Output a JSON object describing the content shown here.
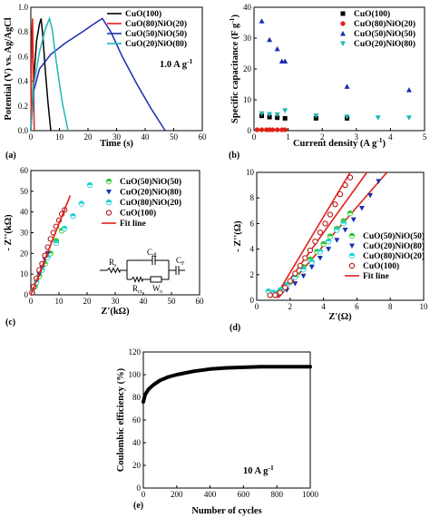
{
  "chart_data": [
    {
      "panel": "(a)",
      "type": "line",
      "xlabel": "Time (s)",
      "ylabel": "Potential (V) vs. Ag/AgCl",
      "xlim": [
        0,
        60
      ],
      "ylim": [
        0,
        1.1
      ],
      "xticks": [
        "0",
        "10",
        "20",
        "30",
        "40",
        "50",
        "60"
      ],
      "yticks": [
        "0.0",
        "0.2",
        "0.4",
        "0.6",
        "0.8",
        "1.0"
      ],
      "annotation": "1.0 A g",
      "annotation_sup": "-1",
      "annotation_color": "#1f9a1f",
      "legend_position": "top-right",
      "series": [
        {
          "name": "CuO(100)",
          "color": "#000000",
          "x": [
            0,
            1,
            2,
            3,
            3.6,
            4.2,
            5,
            6,
            7
          ],
          "y": [
            0,
            0.45,
            0.8,
            0.95,
            1.0,
            0.85,
            0.55,
            0.25,
            0
          ]
        },
        {
          "name": "CuO(80)NiO(20)",
          "color": "#e32017",
          "x": [
            0,
            0.2,
            0.4,
            0.6,
            0.9,
            1.2
          ],
          "y": [
            0,
            0.5,
            0.9,
            1.0,
            0.5,
            0
          ]
        },
        {
          "name": "CuO(50)NiO(50)",
          "color": "#1a2fb0",
          "x": [
            0,
            1,
            3,
            7,
            12,
            18,
            22,
            25,
            28,
            32,
            37,
            42,
            47
          ],
          "y": [
            0,
            0.35,
            0.55,
            0.68,
            0.78,
            0.88,
            0.95,
            1.0,
            0.88,
            0.66,
            0.42,
            0.2,
            0
          ]
        },
        {
          "name": "CuO(20)NiO(80)",
          "color": "#1fb5b5",
          "x": [
            0,
            1,
            3,
            5,
            6.5,
            7.5,
            9,
            11,
            13
          ],
          "y": [
            0,
            0.4,
            0.7,
            0.9,
            1.0,
            0.9,
            0.6,
            0.25,
            0
          ]
        }
      ]
    },
    {
      "panel": "(b)",
      "type": "scatter",
      "xlabel": "Current density (A g",
      "xlabel_sup": "-1",
      "xlabel_tail": ")",
      "ylabel": "Specific capacitance (F g",
      "ylabel_sup": "-1",
      "ylabel_tail": ")",
      "xlim": [
        0,
        5.5
      ],
      "ylim": [
        0,
        40
      ],
      "xticks": [
        "0",
        "1",
        "2",
        "3",
        "4",
        "5"
      ],
      "yticks": [
        "0",
        "10",
        "20",
        "30",
        "40"
      ],
      "legend_position": "top-right",
      "series": [
        {
          "name": "CuO(100)",
          "color": "#000000",
          "marker": "square",
          "x": [
            0.25,
            0.5,
            0.75,
            1.0,
            2.0,
            3.0
          ],
          "y": [
            4.8,
            4.4,
            4.2,
            4.0,
            4.0,
            4.0
          ]
        },
        {
          "name": "CuO(80)NiO(20)",
          "color": "#e32017",
          "marker": "circle",
          "x": [
            0.1,
            0.25,
            0.4,
            0.5,
            0.6,
            0.75,
            0.9,
            1.0
          ],
          "y": [
            0.3,
            0.3,
            0.3,
            0.3,
            0.3,
            0.3,
            0.3,
            0.3
          ]
        },
        {
          "name": "CuO(50)NiO(50)",
          "color": "#1a2fb0",
          "marker": "triangle-up",
          "x": [
            0.25,
            0.5,
            0.75,
            0.9,
            1.0,
            3.0,
            5.0
          ],
          "y": [
            35.5,
            29.5,
            26.5,
            22.5,
            22.5,
            14.3,
            13.2
          ]
        },
        {
          "name": "CuO(20)NiO(80)",
          "color": "#1fb5b5",
          "marker": "triangle-down",
          "x": [
            0.25,
            0.5,
            0.75,
            1.0,
            2.0,
            3.0,
            4.0,
            5.0
          ],
          "y": [
            5.5,
            5.3,
            5.2,
            6.5,
            4.8,
            4.5,
            4.2,
            4.2
          ]
        }
      ]
    },
    {
      "panel": "(c)",
      "type": "scatter",
      "xlabel": "Z'(kΩ)",
      "ylabel": "- Z''(kΩ)",
      "xlim": [
        0,
        60
      ],
      "ylim": [
        0,
        60
      ],
      "xticks": [
        "0",
        "10",
        "20",
        "30",
        "40",
        "50",
        "60"
      ],
      "yticks": [
        "0",
        "10",
        "20",
        "30",
        "40",
        "50",
        "60"
      ],
      "legend_position": "top-right",
      "circuit_labels": {
        "rs": "R",
        "rs_sub": "s",
        "cdl": "C",
        "cdl_sub": "dl",
        "rct": "R",
        "rct_sub": "ct",
        "w": "W",
        "w_sub": "o",
        "cf": "C",
        "cf_sub": "F"
      },
      "series": [
        {
          "name": "CuO(50)NiO(50)",
          "color": "#2fc92f",
          "marker": "circle-half",
          "x": [
            0.5,
            1.5,
            3,
            5,
            7,
            9,
            11
          ],
          "y": [
            1,
            4,
            9,
            15,
            20,
            26,
            31
          ]
        },
        {
          "name": "CuO(20)NiO(80)",
          "color": "#1a2fb0",
          "marker": "triangle-down",
          "x": [
            0.5,
            1,
            2,
            3,
            4,
            5,
            6
          ],
          "y": [
            1,
            3,
            6,
            10,
            13,
            17,
            20
          ]
        },
        {
          "name": "CuO(80)NiO(20)",
          "color": "#1fd0d0",
          "marker": "circle-half",
          "x": [
            0.5,
            2,
            4,
            6,
            9,
            12,
            15,
            18,
            21
          ],
          "y": [
            1,
            6,
            12,
            18,
            25,
            32,
            38,
            44,
            53
          ]
        },
        {
          "name": "CuO(100)",
          "color": "#b01818",
          "marker": "circle-open",
          "x": [
            0.4,
            1,
            2,
            3,
            4,
            5,
            6,
            7,
            8,
            9,
            10,
            11,
            12
          ],
          "y": [
            1,
            4,
            8,
            12,
            15,
            19,
            23,
            27,
            30,
            33,
            36,
            39,
            41
          ]
        },
        {
          "name": "Fit line",
          "color": "#e32017",
          "marker": "line",
          "x": [
            0,
            14
          ],
          "y": [
            0,
            48
          ]
        }
      ]
    },
    {
      "panel": "(d)",
      "type": "scatter",
      "xlabel": "Z'(Ω)",
      "ylabel": "- Z''(Ω)",
      "xlim": [
        0,
        10
      ],
      "ylim": [
        0,
        10
      ],
      "xticks": [
        "0",
        "2",
        "4",
        "6",
        "8",
        "10"
      ],
      "yticks": [
        "0",
        "2",
        "4",
        "6",
        "8",
        "10"
      ],
      "legend_position": "bottom-right",
      "series": [
        {
          "name": "CuO(50)NiO(50)",
          "color": "#2fc92f",
          "marker": "circle-half",
          "x": [
            0.8,
            1.0,
            1.3,
            1.6,
            2.0,
            2.4,
            2.8,
            3.2,
            3.6,
            4.0,
            4.4,
            4.8,
            5.2,
            5.6
          ],
          "y": [
            0.6,
            0.5,
            0.6,
            0.9,
            1.4,
            2.0,
            2.6,
            3.2,
            3.8,
            4.4,
            5.0,
            5.6,
            6.2,
            6.8
          ]
        },
        {
          "name": "CuO(20)NiO(80)",
          "color": "#1a2fb0",
          "marker": "triangle-down",
          "x": [
            1.0,
            1.4,
            1.8,
            2.3,
            2.8,
            3.3,
            3.8,
            4.3,
            4.8,
            5.3,
            5.8,
            6.3,
            6.8,
            7.3
          ],
          "y": [
            0.5,
            0.5,
            0.8,
            1.3,
            1.9,
            2.6,
            3.3,
            4.0,
            4.7,
            5.5,
            6.3,
            7.2,
            8.2,
            9.3
          ]
        },
        {
          "name": "CuO(80)NiO(20)",
          "color": "#1fd0d0",
          "marker": "circle-half",
          "x": [
            0.7,
            1.0,
            1.4,
            1.8,
            2.3,
            2.8,
            3.3,
            3.8,
            4.3,
            4.8,
            5.2
          ],
          "y": [
            0.7,
            0.6,
            0.8,
            1.2,
            1.8,
            2.4,
            3.0,
            3.8,
            4.6,
            5.5,
            6.0
          ]
        },
        {
          "name": "CuO(100)",
          "color": "#b01818",
          "marker": "circle-open",
          "x": [
            0.8,
            1.1,
            1.4,
            1.7,
            2.0,
            2.3,
            2.6,
            2.9,
            3.2,
            3.5,
            3.8,
            4.1,
            4.4,
            4.7,
            5.0,
            5.3,
            5.6
          ],
          "y": [
            0.4,
            0.4,
            0.6,
            1.0,
            1.5,
            2.1,
            2.7,
            3.3,
            3.9,
            4.6,
            5.3,
            6.0,
            6.7,
            7.5,
            8.3,
            9.0,
            9.6
          ]
        }
      ],
      "fit_lines": [
        {
          "color": "#e32017",
          "x": [
            1.1,
            5.6
          ],
          "y": [
            0.2,
            10
          ]
        },
        {
          "color": "#e32017",
          "x": [
            1.2,
            6.6
          ],
          "y": [
            0.2,
            10
          ]
        },
        {
          "color": "#e32017",
          "x": [
            1.3,
            7.8
          ],
          "y": [
            0.2,
            10
          ]
        }
      ],
      "fit_label": "Fit line"
    },
    {
      "panel": "(e)",
      "type": "line",
      "xlabel": "Number of cycles",
      "ylabel": "Coulombic efficiency (%)",
      "xlim": [
        0,
        1000
      ],
      "ylim": [
        0,
        120
      ],
      "xticks": [
        "0",
        "200",
        "400",
        "600",
        "800",
        "1000"
      ],
      "yticks": [
        "0",
        "20",
        "40",
        "60",
        "80",
        "100",
        "120"
      ],
      "annotation": "10 A g",
      "annotation_sup": "-1",
      "annotation_color": "#e32017",
      "series": [
        {
          "name": "",
          "color": "#000000",
          "x": [
            0,
            10,
            30,
            60,
            100,
            150,
            200,
            300,
            400,
            500,
            600,
            700,
            800,
            900,
            1000
          ],
          "y": [
            76,
            82,
            87,
            91,
            95,
            98,
            100,
            103,
            105,
            106,
            106.5,
            107,
            107,
            107,
            107
          ]
        }
      ]
    }
  ]
}
